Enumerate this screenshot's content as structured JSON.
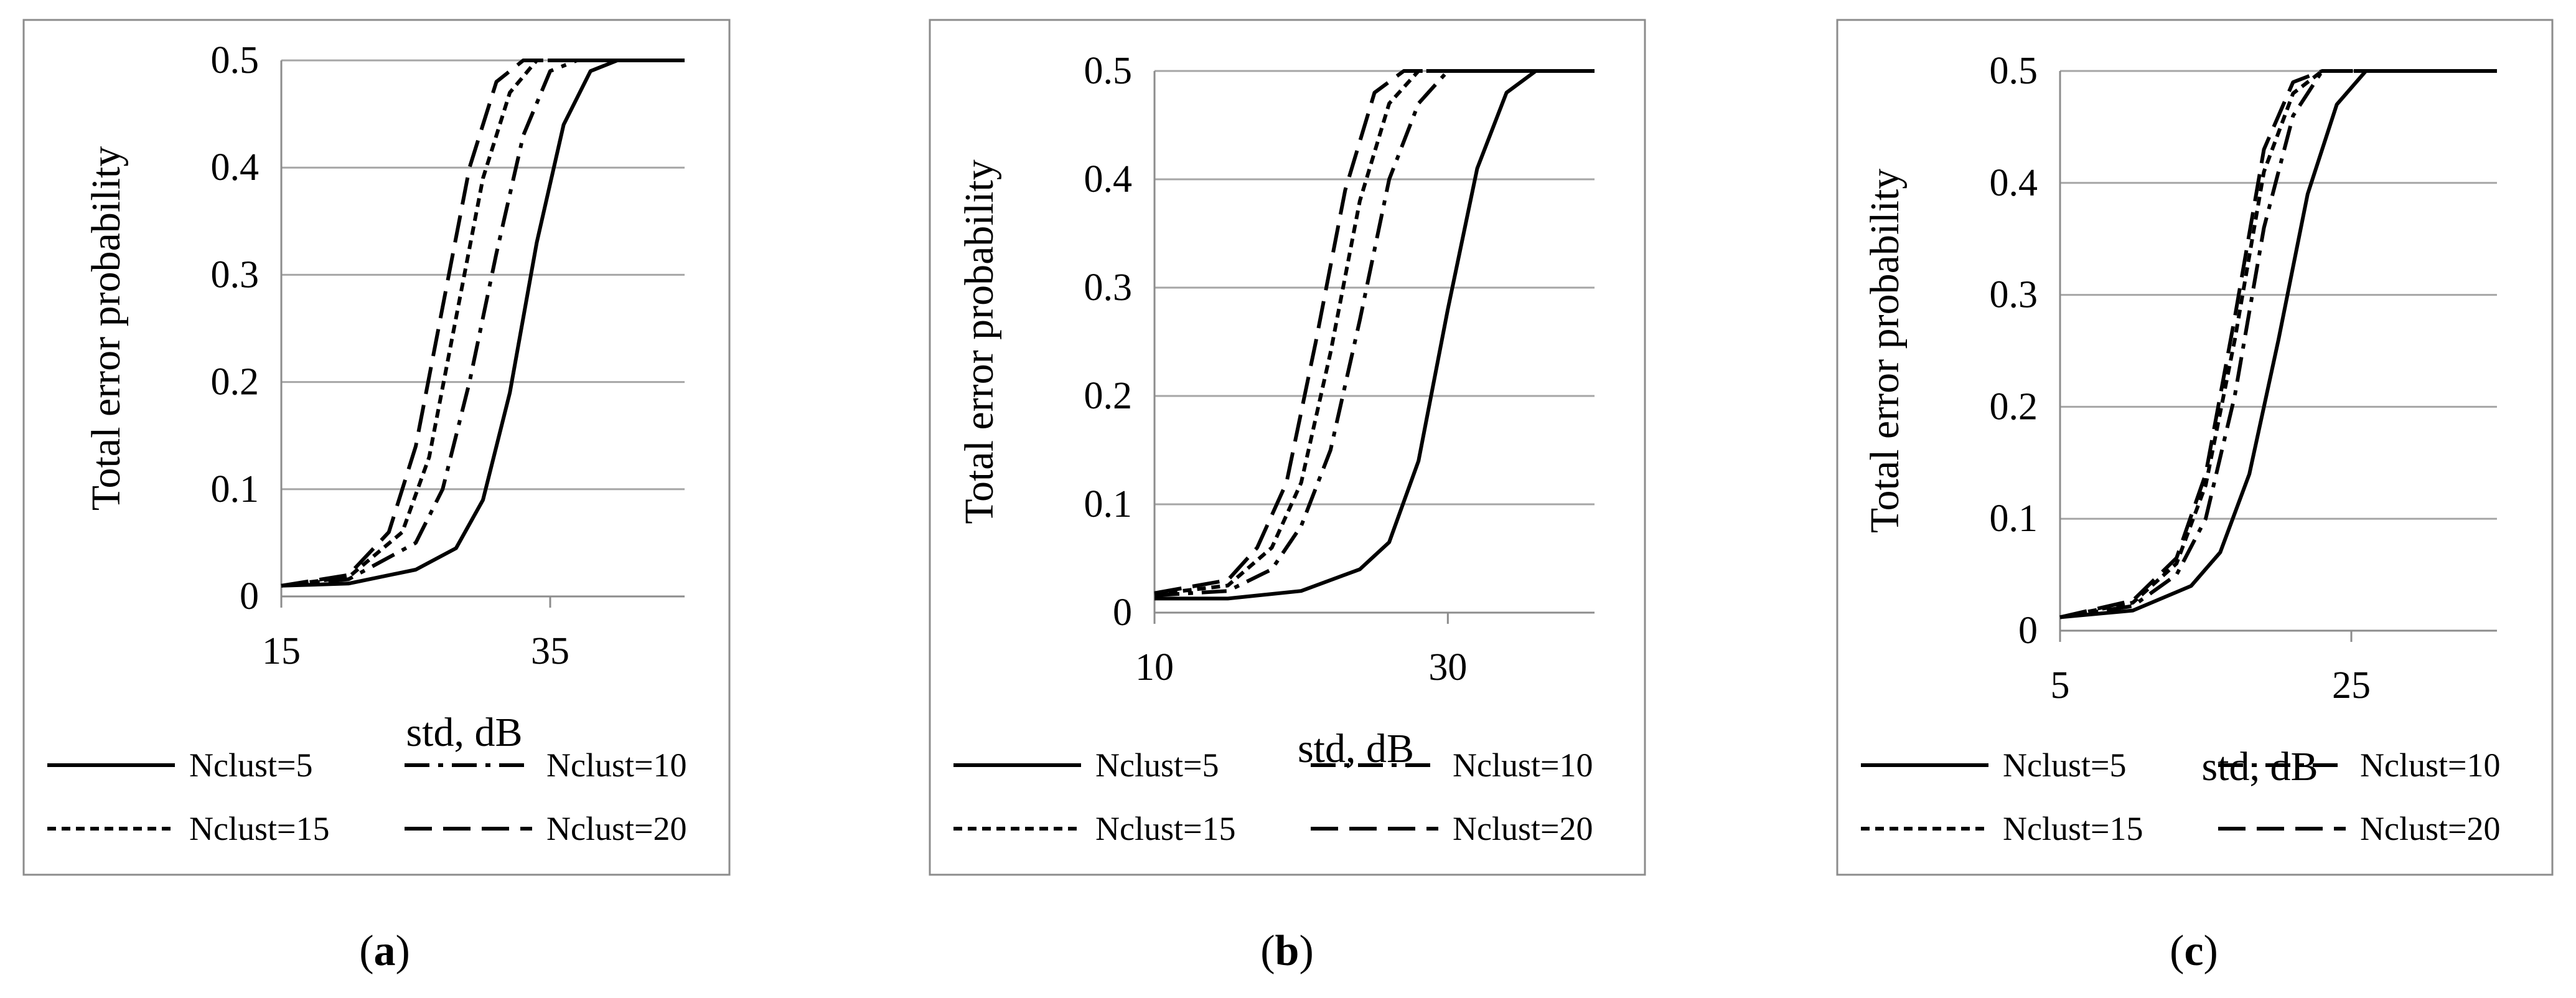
{
  "chart_data": [
    {
      "type": "line",
      "caption_letter": "a",
      "xlabel": "std, dB",
      "ylabel": "Total error probability",
      "xlim": [
        15,
        45
      ],
      "ylim": [
        0,
        0.5
      ],
      "x_ticks": [
        15,
        35
      ],
      "y_ticks": [
        0,
        0.1,
        0.2,
        0.3,
        0.4,
        0.5
      ],
      "y_tick_labels": [
        "0",
        "0.1",
        "0.2",
        "0.3",
        "0.4",
        "0.5"
      ],
      "grid": true,
      "legend": "bottom",
      "series": [
        {
          "name": "Nclust=5",
          "style": "solid",
          "x": [
            15,
            20,
            25,
            28,
            30,
            32,
            34,
            36,
            38,
            40,
            42,
            45
          ],
          "y": [
            0.01,
            0.012,
            0.025,
            0.045,
            0.09,
            0.19,
            0.33,
            0.44,
            0.49,
            0.5,
            0.5,
            0.5
          ]
        },
        {
          "name": "Nclust=10",
          "style": "dashdot",
          "x": [
            15,
            20,
            25,
            27,
            29,
            31,
            33,
            35,
            37,
            40,
            45
          ],
          "y": [
            0.01,
            0.016,
            0.05,
            0.1,
            0.2,
            0.32,
            0.43,
            0.49,
            0.5,
            0.5,
            0.5
          ]
        },
        {
          "name": "Nclust=15",
          "style": "dotted",
          "x": [
            15,
            20,
            24,
            26,
            28,
            30,
            32,
            34,
            36,
            40,
            45
          ],
          "y": [
            0.01,
            0.018,
            0.06,
            0.13,
            0.26,
            0.39,
            0.47,
            0.5,
            0.5,
            0.5,
            0.5
          ]
        },
        {
          "name": "Nclust=20",
          "style": "dashed",
          "x": [
            15,
            20,
            23,
            25,
            27,
            29,
            31,
            33,
            35,
            40,
            45
          ],
          "y": [
            0.01,
            0.02,
            0.06,
            0.14,
            0.27,
            0.4,
            0.48,
            0.5,
            0.5,
            0.5,
            0.5
          ]
        }
      ]
    },
    {
      "type": "line",
      "caption_letter": "b",
      "xlabel": "std, dB",
      "ylabel": "Total error probability",
      "xlim": [
        10,
        40
      ],
      "ylim": [
        0,
        0.5
      ],
      "x_ticks": [
        10,
        30
      ],
      "y_ticks": [
        0,
        0.1,
        0.2,
        0.3,
        0.4,
        0.5
      ],
      "y_tick_labels": [
        "0",
        "0.1",
        "0.2",
        "0.3",
        "0.4",
        "0.5"
      ],
      "grid": true,
      "legend": "bottom",
      "series": [
        {
          "name": "Nclust=5",
          "style": "solid",
          "x": [
            10,
            15,
            20,
            24,
            26,
            28,
            30,
            32,
            34,
            36,
            38,
            40
          ],
          "y": [
            0.013,
            0.013,
            0.02,
            0.04,
            0.065,
            0.14,
            0.28,
            0.41,
            0.48,
            0.5,
            0.5,
            0.5
          ]
        },
        {
          "name": "Nclust=10",
          "style": "dashdot",
          "x": [
            10,
            15,
            18,
            20,
            22,
            24,
            26,
            28,
            30,
            33,
            40
          ],
          "y": [
            0.016,
            0.02,
            0.04,
            0.08,
            0.15,
            0.27,
            0.4,
            0.47,
            0.5,
            0.5,
            0.5
          ]
        },
        {
          "name": "Nclust=15",
          "style": "dotted",
          "x": [
            10,
            15,
            18,
            20,
            22,
            24,
            26,
            28,
            31,
            40
          ],
          "y": [
            0.017,
            0.025,
            0.06,
            0.12,
            0.24,
            0.38,
            0.47,
            0.5,
            0.5,
            0.5
          ]
        },
        {
          "name": "Nclust=20",
          "style": "dashed",
          "x": [
            10,
            15,
            17,
            19,
            21,
            23,
            25,
            27,
            30,
            40
          ],
          "y": [
            0.018,
            0.03,
            0.06,
            0.12,
            0.25,
            0.39,
            0.48,
            0.5,
            0.5,
            0.5
          ]
        }
      ]
    },
    {
      "type": "line",
      "caption_letter": "c",
      "xlabel": "std, dB",
      "ylabel": "Total error probability",
      "xlim": [
        5,
        35
      ],
      "ylim": [
        0,
        0.5
      ],
      "x_ticks": [
        5,
        25
      ],
      "y_ticks": [
        0,
        0.1,
        0.2,
        0.3,
        0.4,
        0.5
      ],
      "y_tick_labels": [
        "0",
        "0.1",
        "0.2",
        "0.3",
        "0.4",
        "0.5"
      ],
      "grid": true,
      "legend": "bottom",
      "series": [
        {
          "name": "Nclust=5",
          "style": "solid",
          "x": [
            5,
            10,
            14,
            16,
            18,
            20,
            22,
            24,
            26,
            28,
            35
          ],
          "y": [
            0.012,
            0.018,
            0.04,
            0.07,
            0.14,
            0.26,
            0.39,
            0.47,
            0.5,
            0.5,
            0.5
          ]
        },
        {
          "name": "Nclust=10",
          "style": "dashdot",
          "x": [
            5,
            10,
            13,
            15,
            17,
            19,
            21,
            23,
            25,
            35
          ],
          "y": [
            0.012,
            0.022,
            0.05,
            0.1,
            0.21,
            0.36,
            0.46,
            0.5,
            0.5,
            0.5
          ]
        },
        {
          "name": "Nclust=15",
          "style": "dotted",
          "x": [
            5,
            10,
            13,
            15,
            17,
            19,
            21,
            23,
            25,
            35
          ],
          "y": [
            0.012,
            0.025,
            0.06,
            0.13,
            0.26,
            0.41,
            0.48,
            0.5,
            0.5,
            0.5
          ]
        },
        {
          "name": "Nclust=20",
          "style": "dashed",
          "x": [
            5,
            10,
            13,
            15,
            17,
            19,
            21,
            23,
            25,
            35
          ],
          "y": [
            0.012,
            0.027,
            0.065,
            0.14,
            0.28,
            0.43,
            0.49,
            0.5,
            0.5,
            0.5
          ]
        }
      ]
    }
  ]
}
